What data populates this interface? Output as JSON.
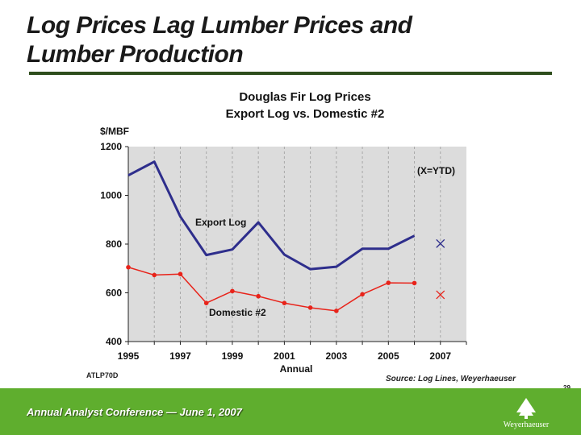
{
  "slide": {
    "title_line1": "Log Prices Lag Lumber Prices and",
    "title_line2": "Lumber Production",
    "code": "ATLP70D",
    "source": "Source: Log Lines, Weyerhaeuser",
    "page_number": "29",
    "footer": "Annual Analyst Conference — June 1, 2007",
    "logo_text": "Weyerhaeuser"
  },
  "colors": {
    "export_log": "#2e2e8c",
    "domestic": "#e8231a",
    "plot_bg": "#dcdcdc",
    "footer_bg": "#5fae2e"
  },
  "chart_data": {
    "type": "line",
    "title": "Douglas Fir Log Prices",
    "subtitle": "Export Log vs. Domestic #2",
    "ylabel": "$/MBF",
    "xlabel": "Annual",
    "xlim": [
      1995,
      2008
    ],
    "ylim": [
      400,
      1200
    ],
    "x_ticks": [
      1995,
      1997,
      1999,
      2001,
      2003,
      2005,
      2007
    ],
    "y_ticks": [
      400,
      600,
      800,
      1000,
      1200
    ],
    "grid": "vertical dashed",
    "annotation": "(X=YTD)",
    "series": [
      {
        "name": "Export Log",
        "x": [
          1995,
          1996,
          1997,
          1998,
          1999,
          2000,
          2001,
          2002,
          2003,
          2004,
          2005,
          2006
        ],
        "values": [
          1082,
          1138,
          913,
          755,
          778,
          889,
          757,
          697,
          707,
          781,
          781,
          834
        ],
        "marker": "none",
        "ytd": {
          "x": 2007,
          "value": 802
        }
      },
      {
        "name": "Domestic #2",
        "x": [
          1995,
          1996,
          1997,
          1998,
          1999,
          2000,
          2001,
          2002,
          2003,
          2004,
          2005,
          2006
        ],
        "values": [
          705,
          673,
          677,
          558,
          607,
          586,
          558,
          539,
          526,
          594,
          641,
          640
        ],
        "marker": "circle",
        "ytd": {
          "x": 2007,
          "value": 592
        }
      }
    ]
  }
}
